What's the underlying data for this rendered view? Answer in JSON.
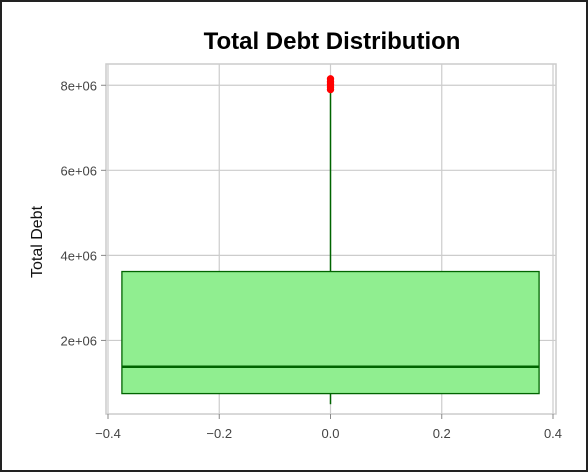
{
  "chart_data": {
    "type": "box",
    "title": "Total Debt Distribution",
    "xlabel": "",
    "ylabel": "Total Debt",
    "xlim": [
      -0.4,
      0.4
    ],
    "ylim": [
      270000,
      8500000
    ],
    "x_ticks": [
      -0.4,
      -0.2,
      0.0,
      0.2,
      0.4
    ],
    "x_tick_labels": [
      "−0.4",
      "−0.2",
      "0.0",
      "0.2",
      "0.4"
    ],
    "y_ticks": [
      2000000,
      4000000,
      6000000,
      8000000
    ],
    "y_tick_labels": [
      "2e+06",
      "4e+06",
      "6e+06",
      "8e+06"
    ],
    "grid": true,
    "box": {
      "position": 0.0,
      "box_width": 0.75,
      "whisker_low": 500000,
      "q1": 750000,
      "median": 1380000,
      "q3": 3620000,
      "whisker_high": 7850000,
      "outliers": [
        7900000,
        7960000,
        8020000,
        8080000,
        8150000
      ]
    },
    "colors": {
      "box_fill": "#90ee90",
      "box_edge": "#006400",
      "median_line": "#006400",
      "whisker": "#006400",
      "outlier": "#ff0000",
      "grid": "#cccccc",
      "axes_edge": "#cccccc"
    }
  }
}
